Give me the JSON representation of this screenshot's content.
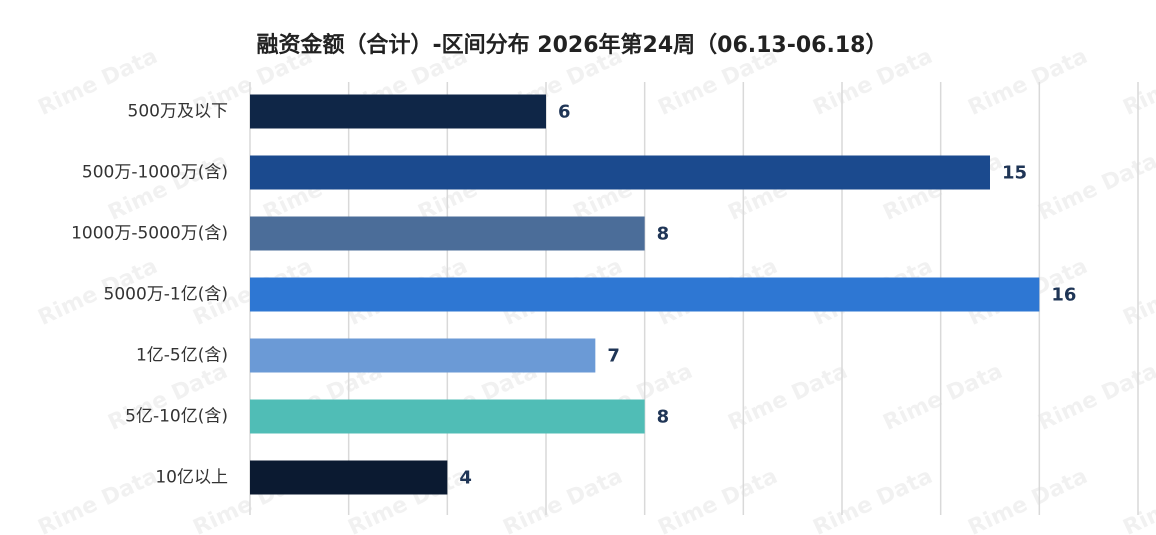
{
  "chart_data": {
    "type": "bar",
    "orientation": "horizontal",
    "title": "融资金额（合计）-区间分布 2026年第24周（06.13-06.18）",
    "watermark": "Rime Data",
    "categories": [
      "500万及以下",
      "500万-1000万(含)",
      "1000万-5000万(含)",
      "5000万-1亿(含)",
      "1亿-5亿(含)",
      "5亿-10亿(含)",
      "10亿以上"
    ],
    "values": [
      6,
      15,
      8,
      16,
      7,
      8,
      4
    ],
    "colors": [
      "#0f2647",
      "#1b4a8e",
      "#4b6d99",
      "#2e77d3",
      "#6b9ad6",
      "#50bdb6",
      "#0b1a31"
    ],
    "xlim": [
      0,
      18
    ],
    "xticks": [
      0,
      2,
      4,
      6,
      8,
      10,
      12,
      14,
      16,
      18
    ],
    "grid": true
  }
}
